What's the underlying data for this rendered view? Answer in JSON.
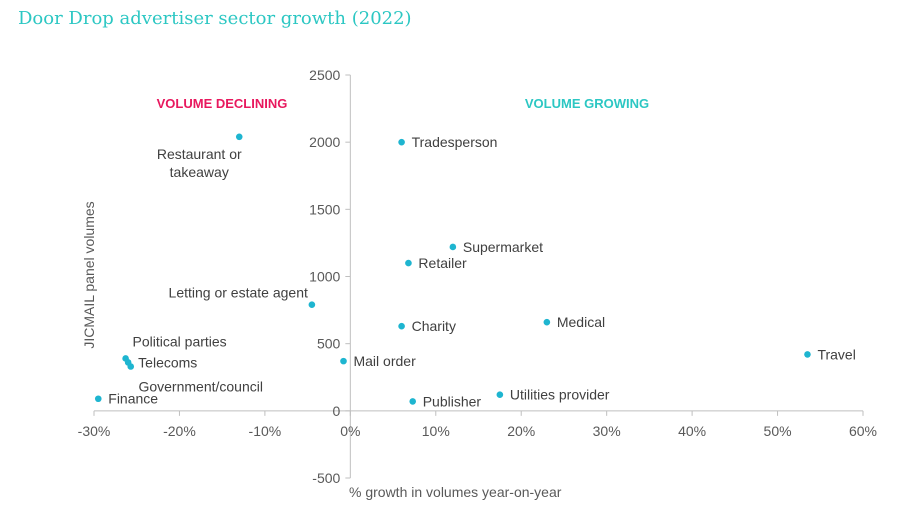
{
  "chart_data": {
    "type": "scatter",
    "title": "Door Drop advertiser sector growth (2022)",
    "xlabel": "% growth in volumes year-on-year",
    "ylabel": "JICMAIL panel volumes",
    "xlim": [
      -30,
      60
    ],
    "ylim": [
      -500,
      2500
    ],
    "x_ticks": [
      -30,
      -20,
      -10,
      0,
      10,
      20,
      30,
      40,
      50,
      60
    ],
    "x_tick_labels": [
      "-30%",
      "-20%",
      "-10%",
      "0%",
      "10%",
      "20%",
      "30%",
      "40%",
      "50%",
      "60%"
    ],
    "y_ticks": [
      -500,
      0,
      500,
      1000,
      1500,
      2000,
      2500
    ],
    "y_tick_labels": [
      "-500",
      "0",
      "500",
      "1000",
      "1500",
      "2000",
      "2500"
    ],
    "quadrant_labels": {
      "left": "VOLUME DECLINING",
      "right": "VOLUME GROWING",
      "left_color": "#e8185e",
      "right_color": "#2cc7c3"
    },
    "point_color": "#1eb5d0",
    "grid": false,
    "points": [
      {
        "label": "Restaurant or takeaway",
        "x": -13,
        "y": 2040,
        "label_lines": [
          "Restaurant or",
          "takeaway"
        ],
        "align": "middle",
        "pos": "below-left"
      },
      {
        "label": "Tradesperson",
        "x": 6,
        "y": 2000,
        "label_lines": [
          "Tradesperson"
        ],
        "pos": "right"
      },
      {
        "label": "Supermarket",
        "x": 12,
        "y": 1220,
        "label_lines": [
          "Supermarket"
        ],
        "pos": "right"
      },
      {
        "label": "Retailer",
        "x": 6.8,
        "y": 1100,
        "label_lines": [
          "Retailer"
        ],
        "pos": "right"
      },
      {
        "label": "Letting or estate agent",
        "x": -4.5,
        "y": 790,
        "label_lines": [
          "Letting or estate agent"
        ],
        "pos": "above-left"
      },
      {
        "label": "Charity",
        "x": 6,
        "y": 630,
        "label_lines": [
          "Charity"
        ],
        "pos": "right"
      },
      {
        "label": "Medical",
        "x": 23,
        "y": 660,
        "label_lines": [
          "Medical"
        ],
        "pos": "right"
      },
      {
        "label": "Travel",
        "x": 53.5,
        "y": 420,
        "label_lines": [
          "Travel"
        ],
        "pos": "right"
      },
      {
        "label": "Mail order",
        "x": -0.8,
        "y": 370,
        "label_lines": [
          "Mail order"
        ],
        "pos": "right"
      },
      {
        "label": "Political parties",
        "x": -26.3,
        "y": 390,
        "label_lines": [
          "Political parties"
        ],
        "pos": "above"
      },
      {
        "label": "Telecoms",
        "x": -26,
        "y": 360,
        "label_lines": [
          "Telecoms"
        ],
        "pos": "right"
      },
      {
        "label": "Government/council",
        "x": -25.7,
        "y": 330,
        "label_lines": [
          "Government/council"
        ],
        "pos": "below"
      },
      {
        "label": "Finance",
        "x": -29.5,
        "y": 90,
        "label_lines": [
          "Finance"
        ],
        "pos": "right"
      },
      {
        "label": "Publisher",
        "x": 7.3,
        "y": 70,
        "label_lines": [
          "Publisher"
        ],
        "pos": "right"
      },
      {
        "label": "Utilities provider",
        "x": 17.5,
        "y": 120,
        "label_lines": [
          "Utilities provider"
        ],
        "pos": "right"
      }
    ]
  }
}
